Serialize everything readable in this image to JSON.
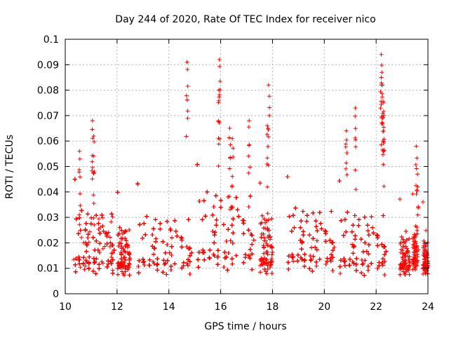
{
  "chart_data": {
    "type": "scatter",
    "title": "Day 244 of 2020, Rate Of TEC Index for receiver nico",
    "xlabel": "GPS time / hours",
    "ylabel": "ROTI / TECUs",
    "xlim": [
      10,
      24
    ],
    "ylim": [
      0,
      0.1
    ],
    "x_ticks": [
      "10",
      "12",
      "14",
      "16",
      "18",
      "20",
      "22",
      "24"
    ],
    "y_ticks": [
      "0",
      "0.01",
      "0.02",
      "0.03",
      "0.04",
      "0.05",
      "0.06",
      "0.07",
      "0.08",
      "0.09",
      "0.1"
    ],
    "grid": true,
    "marker": "plus",
    "color": "#ff0000",
    "clusters": [
      {
        "x": [
          10.3,
          11.9
        ],
        "base": 0.017,
        "spread": 0.022,
        "floor": 0.004,
        "count": 900
      },
      {
        "x": [
          12.0,
          12.5
        ],
        "base": 0.015,
        "spread": 0.016,
        "floor": 0.004,
        "count": 220
      },
      {
        "x": [
          12.7,
          14.9
        ],
        "base": 0.016,
        "spread": 0.02,
        "floor": 0.004,
        "count": 950
      },
      {
        "x": [
          15.0,
          17.3
        ],
        "base": 0.019,
        "spread": 0.028,
        "floor": 0.005,
        "count": 1100
      },
      {
        "x": [
          17.5,
          18.0
        ],
        "base": 0.015,
        "spread": 0.02,
        "floor": 0.005,
        "count": 150
      },
      {
        "x": [
          18.5,
          20.4
        ],
        "base": 0.018,
        "spread": 0.022,
        "floor": 0.005,
        "count": 800
      },
      {
        "x": [
          20.5,
          22.4
        ],
        "base": 0.017,
        "spread": 0.022,
        "floor": 0.003,
        "count": 850
      },
      {
        "x": [
          22.9,
          23.3
        ],
        "base": 0.012,
        "spread": 0.012,
        "floor": 0.006,
        "count": 130
      },
      {
        "x": [
          23.4,
          23.6
        ],
        "base": 0.014,
        "spread": 0.012,
        "floor": 0.008,
        "count": 60
      },
      {
        "x": [
          23.8,
          24.0
        ],
        "base": 0.013,
        "spread": 0.01,
        "floor": 0.006,
        "count": 90
      }
    ],
    "peaks": [
      {
        "x": 10.55,
        "y": 0.056
      },
      {
        "x": 11.05,
        "y": 0.068
      },
      {
        "x": 11.1,
        "y": 0.062
      },
      {
        "x": 14.7,
        "y": 0.091
      },
      {
        "x": 15.95,
        "y": 0.092
      },
      {
        "x": 15.93,
        "y": 0.08
      },
      {
        "x": 16.35,
        "y": 0.065
      },
      {
        "x": 16.45,
        "y": 0.061
      },
      {
        "x": 17.1,
        "y": 0.068
      },
      {
        "x": 17.85,
        "y": 0.082
      },
      {
        "x": 17.8,
        "y": 0.066
      },
      {
        "x": 21.2,
        "y": 0.073
      },
      {
        "x": 20.85,
        "y": 0.064
      },
      {
        "x": 22.2,
        "y": 0.094
      },
      {
        "x": 22.22,
        "y": 0.087
      },
      {
        "x": 22.25,
        "y": 0.082
      },
      {
        "x": 22.27,
        "y": 0.075
      },
      {
        "x": 22.3,
        "y": 0.07
      },
      {
        "x": 23.55,
        "y": 0.058
      },
      {
        "x": 23.6,
        "y": 0.047
      }
    ]
  }
}
